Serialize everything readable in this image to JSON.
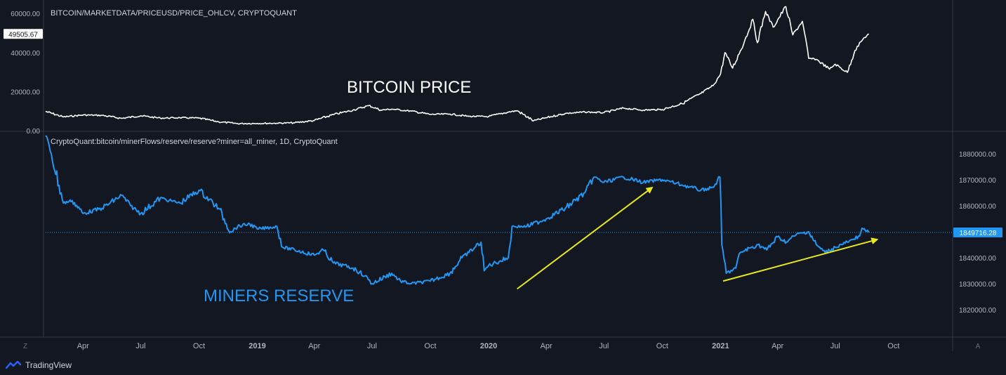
{
  "colors": {
    "background": "#131722",
    "price_line": "#ffffff",
    "reserve_line": "#2196f3",
    "arrow": "#e8e81c",
    "axis_text": "#b2b5be",
    "divider": "#363a45"
  },
  "branding": {
    "name": "TradingView",
    "icon": "tradingview-logo-icon"
  },
  "chart_data": [
    {
      "type": "line",
      "title": "BITCOIN/MARKETDATA/PRICEUSD/PRICE_OHLCV, CRYPTOQUANT",
      "annotation": "BITCOIN PRICE",
      "ylim": [
        0,
        64000
      ],
      "y_ticks": [
        {
          "value": 60000,
          "label": "60000.00"
        },
        {
          "value": 40000,
          "label": "40000.00"
        },
        {
          "value": 20000,
          "label": "20000.00"
        },
        {
          "value": 0,
          "label": "0.00"
        }
      ],
      "last_value_label": "49505.67",
      "last_value": 49505.67,
      "axis_side": "left",
      "series": [
        {
          "color": "#ffffff",
          "points": [
            [
              "2018-02-01",
              9800
            ],
            [
              "2018-03-01",
              7000
            ],
            [
              "2018-04-01",
              8000
            ],
            [
              "2018-05-01",
              7800
            ],
            [
              "2018-06-01",
              6300
            ],
            [
              "2018-07-01",
              7600
            ],
            [
              "2018-08-01",
              6400
            ],
            [
              "2018-09-01",
              6600
            ],
            [
              "2018-10-01",
              6400
            ],
            [
              "2018-11-01",
              4500
            ],
            [
              "2018-12-01",
              3600
            ],
            [
              "2019-01-01",
              3700
            ],
            [
              "2019-02-01",
              3800
            ],
            [
              "2019-03-01",
              4000
            ],
            [
              "2019-04-01",
              5200
            ],
            [
              "2019-05-01",
              8200
            ],
            [
              "2019-06-01",
              10500
            ],
            [
              "2019-06-26",
              12800
            ],
            [
              "2019-07-15",
              10500
            ],
            [
              "2019-08-01",
              11000
            ],
            [
              "2019-09-01",
              10000
            ],
            [
              "2019-10-01",
              8300
            ],
            [
              "2019-11-01",
              8500
            ],
            [
              "2019-12-01",
              7300
            ],
            [
              "2020-01-01",
              7200
            ],
            [
              "2020-02-01",
              9500
            ],
            [
              "2020-02-15",
              10200
            ],
            [
              "2020-03-12",
              5000
            ],
            [
              "2020-04-01",
              6600
            ],
            [
              "2020-05-01",
              8800
            ],
            [
              "2020-06-01",
              9500
            ],
            [
              "2020-07-01",
              9200
            ],
            [
              "2020-08-01",
              11500
            ],
            [
              "2020-09-01",
              10500
            ],
            [
              "2020-10-01",
              10800
            ],
            [
              "2020-11-01",
              13800
            ],
            [
              "2020-12-01",
              19000
            ],
            [
              "2020-12-20",
              23000
            ],
            [
              "2021-01-01",
              29000
            ],
            [
              "2021-01-08",
              40000
            ],
            [
              "2021-01-20",
              32000
            ],
            [
              "2021-02-08",
              46000
            ],
            [
              "2021-02-21",
              57000
            ],
            [
              "2021-02-28",
              45000
            ],
            [
              "2021-03-13",
              61000
            ],
            [
              "2021-03-25",
              53000
            ],
            [
              "2021-04-14",
              63500
            ],
            [
              "2021-04-25",
              49000
            ],
            [
              "2021-05-10",
              56000
            ],
            [
              "2021-05-20",
              37000
            ],
            [
              "2021-06-01",
              36500
            ],
            [
              "2021-06-22",
              31500
            ],
            [
              "2021-07-01",
              34000
            ],
            [
              "2021-07-20",
              29800
            ],
            [
              "2021-08-01",
              41000
            ],
            [
              "2021-08-14",
              47000
            ],
            [
              "2021-08-23",
              49505.67
            ]
          ]
        }
      ]
    },
    {
      "type": "line",
      "title": "CryptoQuant:bitcoin/minerFlows/reserve/reserve?miner=all_miner, 1D, CryptoQuant",
      "annotation": "MINERS RESERVE",
      "ylim": [
        1810000,
        1887000
      ],
      "y_ticks": [
        {
          "value": 1880000,
          "label": "1880000.00"
        },
        {
          "value": 1870000,
          "label": "1870000.00"
        },
        {
          "value": 1860000,
          "label": "1860000.00"
        },
        {
          "value": 1850000,
          "label": "1850000.00"
        },
        {
          "value": 1840000,
          "label": "1840000.00"
        },
        {
          "value": 1830000,
          "label": "1830000.00"
        },
        {
          "value": 1820000,
          "label": "1820000.00"
        }
      ],
      "last_value_label": "1849716.28",
      "last_value": 1849716.28,
      "axis_side": "right",
      "series": [
        {
          "color": "#2196f3",
          "points": [
            [
              "2018-02-01",
              1887000
            ],
            [
              "2018-02-10",
              1880000
            ],
            [
              "2018-03-01",
              1861000
            ],
            [
              "2018-03-15",
              1862000
            ],
            [
              "2018-04-01",
              1857000
            ],
            [
              "2018-05-01",
              1859000
            ],
            [
              "2018-06-01",
              1864000
            ],
            [
              "2018-06-15",
              1860000
            ],
            [
              "2018-07-01",
              1857000
            ],
            [
              "2018-08-01",
              1863000
            ],
            [
              "2018-08-15",
              1862000
            ],
            [
              "2018-09-01",
              1861000
            ],
            [
              "2018-10-01",
              1866000
            ],
            [
              "2018-11-01",
              1859000
            ],
            [
              "2018-11-20",
              1850000
            ],
            [
              "2018-12-01",
              1852000
            ],
            [
              "2018-12-20",
              1853000
            ],
            [
              "2019-01-01",
              1851000
            ],
            [
              "2019-02-01",
              1852000
            ],
            [
              "2019-02-10",
              1844000
            ],
            [
              "2019-03-01",
              1843000
            ],
            [
              "2019-04-01",
              1841000
            ],
            [
              "2019-04-15",
              1843000
            ],
            [
              "2019-05-01",
              1838000
            ],
            [
              "2019-06-01",
              1836000
            ],
            [
              "2019-06-20",
              1833000
            ],
            [
              "2019-07-01",
              1830000
            ],
            [
              "2019-08-01",
              1834000
            ],
            [
              "2019-08-15",
              1831000
            ],
            [
              "2019-09-01",
              1830000
            ],
            [
              "2019-10-01",
              1831000
            ],
            [
              "2019-11-01",
              1834000
            ],
            [
              "2019-11-20",
              1840000
            ],
            [
              "2019-12-01",
              1842000
            ],
            [
              "2019-12-20",
              1846000
            ],
            [
              "2019-12-25",
              1835000
            ],
            [
              "2020-01-01",
              1837000
            ],
            [
              "2020-02-01",
              1840000
            ],
            [
              "2020-02-07",
              1852000
            ],
            [
              "2020-03-01",
              1852000
            ],
            [
              "2020-04-01",
              1855000
            ],
            [
              "2020-05-01",
              1859000
            ],
            [
              "2020-06-01",
              1865000
            ],
            [
              "2020-06-15",
              1871000
            ],
            [
              "2020-07-01",
              1869000
            ],
            [
              "2020-08-01",
              1871000
            ],
            [
              "2020-09-01",
              1869000
            ],
            [
              "2020-10-01",
              1870000
            ],
            [
              "2020-11-01",
              1868000
            ],
            [
              "2020-12-01",
              1866000
            ],
            [
              "2020-12-20",
              1867000
            ],
            [
              "2020-12-31",
              1871000
            ],
            [
              "2021-01-03",
              1845000
            ],
            [
              "2021-01-10",
              1834000
            ],
            [
              "2021-01-25",
              1836000
            ],
            [
              "2021-02-01",
              1842000
            ],
            [
              "2021-03-01",
              1845000
            ],
            [
              "2021-03-15",
              1843000
            ],
            [
              "2021-04-01",
              1848000
            ],
            [
              "2021-04-15",
              1846000
            ],
            [
              "2021-05-01",
              1849000
            ],
            [
              "2021-05-20",
              1850000
            ],
            [
              "2021-06-01",
              1845000
            ],
            [
              "2021-06-15",
              1842000
            ],
            [
              "2021-07-01",
              1844000
            ],
            [
              "2021-07-20",
              1846000
            ],
            [
              "2021-08-01",
              1847000
            ],
            [
              "2021-08-14",
              1851000
            ],
            [
              "2021-08-23",
              1849716.28
            ]
          ]
        }
      ]
    }
  ],
  "x_axis": {
    "labels": [
      {
        "date": "2018-04-01",
        "label": "Apr",
        "bold": false
      },
      {
        "date": "2018-07-01",
        "label": "Jul",
        "bold": false
      },
      {
        "date": "2018-10-01",
        "label": "Oct",
        "bold": false
      },
      {
        "date": "2019-01-01",
        "label": "2019",
        "bold": true
      },
      {
        "date": "2019-04-01",
        "label": "Apr",
        "bold": false
      },
      {
        "date": "2019-07-01",
        "label": "Jul",
        "bold": false
      },
      {
        "date": "2019-10-01",
        "label": "Oct",
        "bold": false
      },
      {
        "date": "2020-01-01",
        "label": "2020",
        "bold": true
      },
      {
        "date": "2020-04-01",
        "label": "Apr",
        "bold": false
      },
      {
        "date": "2020-07-01",
        "label": "Jul",
        "bold": false
      },
      {
        "date": "2020-10-01",
        "label": "Oct",
        "bold": false
      },
      {
        "date": "2021-01-01",
        "label": "2021",
        "bold": true
      },
      {
        "date": "2021-04-01",
        "label": "Apr",
        "bold": false
      },
      {
        "date": "2021-07-01",
        "label": "Jul",
        "bold": false
      },
      {
        "date": "2021-10-01",
        "label": "Oct",
        "bold": false
      }
    ],
    "left_marker": "Z",
    "right_marker": "A"
  },
  "arrows": [
    {
      "from": [
        "2020-02-15",
        1828000
      ],
      "to": [
        "2020-09-15",
        1867000
      ]
    },
    {
      "from": [
        "2021-01-05",
        1831000
      ],
      "to": [
        "2021-09-05",
        1847000
      ]
    }
  ]
}
